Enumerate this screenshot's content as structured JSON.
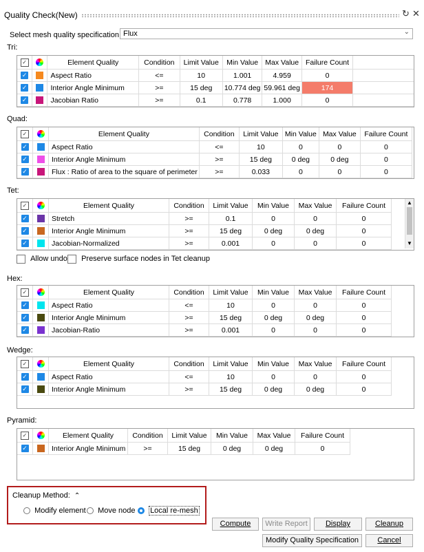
{
  "window": {
    "title": "Quality Check(New)",
    "refresh_icon": "refresh-icon",
    "close_icon": "close-icon"
  },
  "spec": {
    "label": "Select mesh quality specification",
    "value": "Flux"
  },
  "headers": {
    "element_quality": "Element Quality",
    "condition": "Condition",
    "limit": "Limit Value",
    "min": "Min Value",
    "max": "Max Value",
    "failure": "Failure Count"
  },
  "colors": {
    "orange": "#f5891f",
    "blue": "#1e88e5",
    "magenta": "#c8167a",
    "pink": "#ee4fe8",
    "purple": "#6b35a8",
    "brown": "#c9671f",
    "cyan": "#00e5ee",
    "olive": "#4a4a10",
    "violet": "#7a33cf",
    "fail": "#f47c6a"
  },
  "tri": {
    "label": "Tri:",
    "rows": [
      {
        "name": "Aspect Ratio",
        "cond": "<=",
        "limit": "10",
        "min": "1.001",
        "max": "4.959",
        "fail": "0",
        "color": "#f5891f"
      },
      {
        "name": "Interior Angle Minimum",
        "cond": ">=",
        "limit": "15 deg",
        "min": "10.774 deg",
        "max": "59.961 deg",
        "fail": "174",
        "color": "#1e88e5"
      },
      {
        "name": "Jacobian Ratio",
        "cond": ">=",
        "limit": "0.1",
        "min": "0.778",
        "max": "1.000",
        "fail": "0",
        "color": "#c8167a"
      }
    ]
  },
  "quad": {
    "label": "Quad:",
    "rows": [
      {
        "name": "Aspect Ratio",
        "cond": "<=",
        "limit": "10",
        "min": "0",
        "max": "0",
        "fail": "0",
        "color": "#1e88e5"
      },
      {
        "name": "Interior Angle Minimum",
        "cond": ">=",
        "limit": "15 deg",
        "min": "0 deg",
        "max": "0 deg",
        "fail": "0",
        "color": "#ee4fe8"
      },
      {
        "name": "Flux : Ratio of area to the square of perimeter",
        "cond": ">=",
        "limit": "0.033",
        "min": "0",
        "max": "0",
        "fail": "0",
        "color": "#c8167a"
      }
    ]
  },
  "tet": {
    "label": "Tet:",
    "rows": [
      {
        "name": "Stretch",
        "cond": ">=",
        "limit": "0.1",
        "min": "0",
        "max": "0",
        "fail": "0",
        "color": "#6b35a8"
      },
      {
        "name": "Interior Angle Minimum",
        "cond": ">=",
        "limit": "15 deg",
        "min": "0 deg",
        "max": "0 deg",
        "fail": "0",
        "color": "#c9671f"
      },
      {
        "name": "Jacobian-Normalized",
        "cond": ">=",
        "limit": "0.001",
        "min": "0",
        "max": "0",
        "fail": "0",
        "color": "#00e5ee"
      }
    ]
  },
  "options": {
    "allow_undo": "Allow undo",
    "preserve": "Preserve surface nodes in Tet cleanup"
  },
  "hex": {
    "label": "Hex:",
    "rows": [
      {
        "name": "Aspect Ratio",
        "cond": "<=",
        "limit": "10",
        "min": "0",
        "max": "0",
        "fail": "0",
        "color": "#00e5ee"
      },
      {
        "name": "Interior Angle Minimum",
        "cond": ">=",
        "limit": "15 deg",
        "min": "0 deg",
        "max": "0 deg",
        "fail": "0",
        "color": "#4a4a10"
      },
      {
        "name": "Jacobian-Ratio",
        "cond": ">=",
        "limit": "0.001",
        "min": "0",
        "max": "0",
        "fail": "0",
        "color": "#7a33cf"
      }
    ]
  },
  "wedge": {
    "label": "Wedge:",
    "rows": [
      {
        "name": "Aspect Ratio",
        "cond": "<=",
        "limit": "10",
        "min": "0",
        "max": "0",
        "fail": "0",
        "color": "#1e88e5"
      },
      {
        "name": "Interior Angle Minimum",
        "cond": ">=",
        "limit": "15 deg",
        "min": "0 deg",
        "max": "0 deg",
        "fail": "0",
        "color": "#4a4a10"
      }
    ]
  },
  "pyramid": {
    "label": "Pyramid:",
    "rows": [
      {
        "name": "Interior Angle Minimum",
        "cond": ">=",
        "limit": "15 deg",
        "min": "0 deg",
        "max": "0 deg",
        "fail": "0",
        "color": "#c9671f"
      }
    ]
  },
  "cleanup": {
    "label": "Cleanup Method:",
    "options": [
      "Modify element",
      "Move node",
      "Local re-mesh"
    ],
    "selected": "Local re-mesh"
  },
  "buttons": {
    "compute": "Compute",
    "write_report": "Write Report",
    "display": "Display",
    "cleanup": "Cleanup",
    "modify_spec": "Modify Quality Specification",
    "cancel": "Cancel"
  }
}
